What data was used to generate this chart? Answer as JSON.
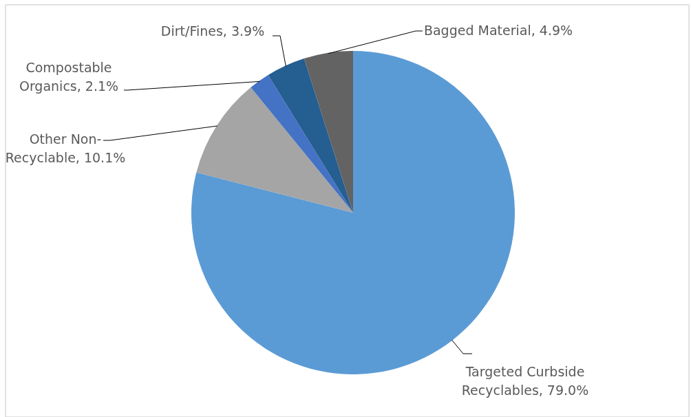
{
  "chart_data": {
    "type": "pie",
    "categories": [
      "Targeted Curbside Recyclables",
      "Other Non-Recyclable",
      "Compostable Organics",
      "Dirt/Fines",
      "Bagged Material"
    ],
    "values": [
      79.0,
      10.1,
      2.1,
      3.9,
      4.9
    ],
    "value_labels": [
      "79.0%",
      "10.1%",
      "2.1%",
      "3.9%",
      "4.9%"
    ],
    "colors": [
      "#5b9bd5",
      "#a5a5a5",
      "#4472c4",
      "#255e91",
      "#636363"
    ]
  }
}
